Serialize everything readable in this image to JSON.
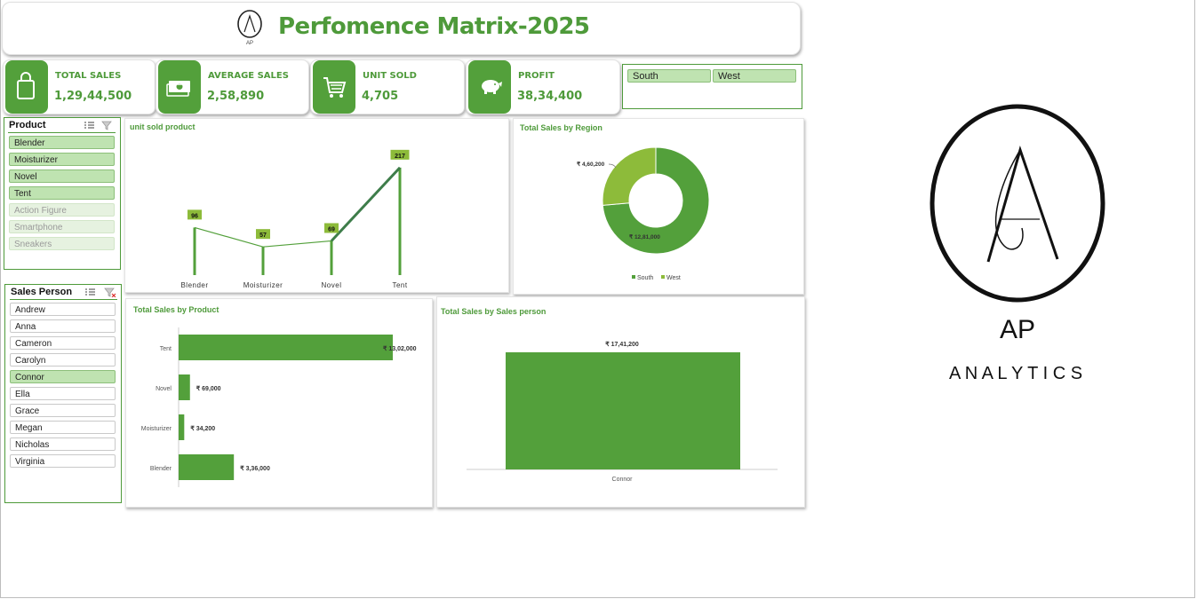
{
  "header": {
    "title": "Perfomence Matrix-2025",
    "logo_text": "AP"
  },
  "kpis": [
    {
      "label": "TOTAL SALES",
      "value": "1,29,44,500",
      "icon": "shopping-bag-icon"
    },
    {
      "label": "AVERAGE  SALES",
      "value": "2,58,890",
      "icon": "cash-icon"
    },
    {
      "label": "UNIT SOLD",
      "value": "4,705",
      "icon": "shopping-cart-icon"
    },
    {
      "label": "PROFIT",
      "value": "38,34,400",
      "icon": "piggy-bank-icon"
    }
  ],
  "region_slicer": {
    "items": [
      "South",
      "West"
    ]
  },
  "product_slicer": {
    "title": "Product",
    "items": [
      {
        "label": "Blender",
        "state": "selected"
      },
      {
        "label": "Moisturizer",
        "state": "selected"
      },
      {
        "label": "Novel",
        "state": "selected"
      },
      {
        "label": "Tent",
        "state": "selected"
      },
      {
        "label": "Action Figure",
        "state": "no-data"
      },
      {
        "label": "Smartphone",
        "state": "no-data"
      },
      {
        "label": "Sneakers",
        "state": "no-data"
      }
    ]
  },
  "salesperson_slicer": {
    "title": "Sales Person",
    "items": [
      {
        "label": "Andrew",
        "state": "unselected"
      },
      {
        "label": "Anna",
        "state": "unselected"
      },
      {
        "label": "Cameron",
        "state": "unselected"
      },
      {
        "label": "Carolyn",
        "state": "unselected"
      },
      {
        "label": "Connor",
        "state": "selected"
      },
      {
        "label": "Ella",
        "state": "unselected"
      },
      {
        "label": "Grace",
        "state": "unselected"
      },
      {
        "label": "Megan",
        "state": "unselected"
      },
      {
        "label": "Nicholas",
        "state": "unselected"
      },
      {
        "label": "Virginia",
        "state": "unselected"
      }
    ]
  },
  "brand": {
    "monogram": "AP",
    "name": "A N A L Y T I C S"
  },
  "colors": {
    "accent": "#4e9a3a",
    "dark_green": "#53a03b",
    "light_green": "#8dbb3a",
    "selected_fill": "#bfe3b1"
  },
  "chart_data": [
    {
      "id": "unit_sold",
      "type": "line",
      "title": "unit sold  product",
      "categories": [
        "Blender",
        "Moisturizer",
        "Novel",
        "Tent"
      ],
      "values": [
        96,
        57,
        69,
        217
      ],
      "data_labels": [
        "96",
        "57",
        "69",
        "217"
      ],
      "ylim": [
        0,
        240
      ]
    },
    {
      "id": "region",
      "type": "pie",
      "title": "Total Sales by Region",
      "labels": [
        "South",
        "West"
      ],
      "values": [
        1281000,
        460200
      ],
      "data_labels": [
        "₹ 12,81,000",
        "₹ 4,60,200"
      ],
      "legend": "bottom"
    },
    {
      "id": "product",
      "type": "bar",
      "title": "Total Sales by Product",
      "orientation": "horizontal",
      "categories": [
        "Tent",
        "Novel",
        "Moisturizer",
        "Blender"
      ],
      "values": [
        1302000,
        69000,
        34200,
        336000
      ],
      "data_labels": [
        "₹ 13,02,000",
        "₹ 69,000",
        "₹ 34,200",
        "₹ 3,36,000"
      ],
      "xlim": [
        0,
        1302000
      ]
    },
    {
      "id": "salesperson",
      "type": "bar",
      "title": "Total Sales by Sales person",
      "categories": [
        "Connor"
      ],
      "values": [
        1741200
      ],
      "data_labels": [
        "₹ 17,41,200"
      ],
      "ylim": [
        0,
        1741200
      ]
    }
  ]
}
